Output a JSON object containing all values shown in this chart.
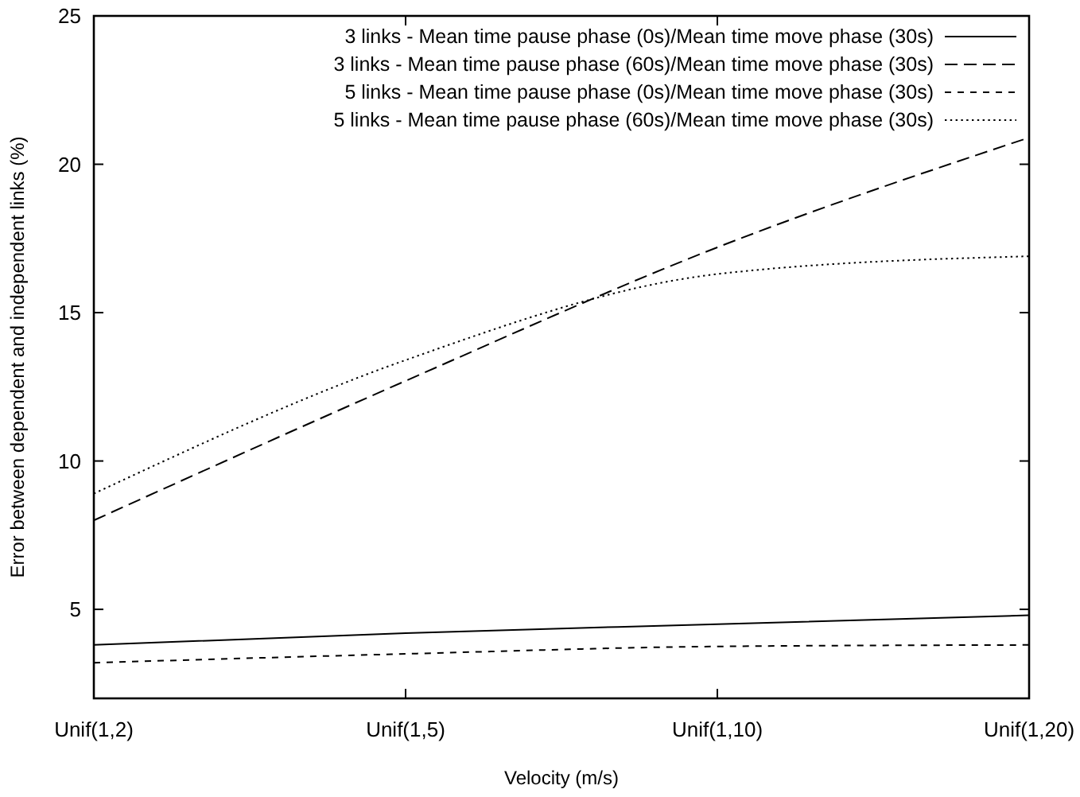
{
  "chart_data": {
    "type": "line",
    "xlabel": "Velocity (m/s)",
    "ylabel": "Error between dependent and independent links (%)",
    "categories": [
      "Unif(1,2)",
      "Unif(1,5)",
      "Unif(1,10)",
      "Unif(1,20)"
    ],
    "ylim": [
      2,
      25
    ],
    "yticks": [
      5,
      10,
      15,
      20,
      25
    ],
    "grid": false,
    "legend": "top right",
    "marker": "none",
    "series": [
      {
        "name": "3 links - Mean time pause phase (0s)/Mean time move phase (30s)",
        "color": "#000000",
        "line_style": "solid",
        "values": [
          3.8,
          4.2,
          4.5,
          4.8
        ]
      },
      {
        "name": "3 links - Mean time pause phase (60s)/Mean time move phase (30s)",
        "color": "#000000",
        "line_style": "dashed",
        "values": [
          8.0,
          12.7,
          17.2,
          20.9
        ]
      },
      {
        "name": "5 links - Mean time pause phase (0s)/Mean time move phase (30s)",
        "color": "#000000",
        "line_style": "shortdash",
        "values": [
          3.2,
          3.5,
          3.75,
          3.8
        ]
      },
      {
        "name": "5 links - Mean time pause phase (60s)/Mean time move phase (30s)",
        "color": "#000000",
        "line_style": "dotted",
        "values": [
          8.9,
          13.4,
          16.3,
          16.9
        ]
      }
    ]
  }
}
